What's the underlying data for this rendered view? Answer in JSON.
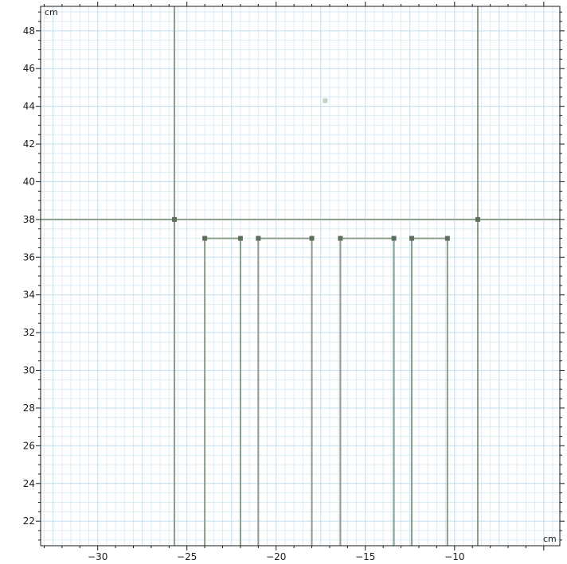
{
  "chart_data": {
    "type": "scatter",
    "x_unit": "cm",
    "y_unit": "cm",
    "xlim": [
      -33.2,
      -4.1
    ],
    "ylim": [
      20.7,
      49.3
    ],
    "x_ticks": [
      -30,
      -25,
      -20,
      -15,
      -10
    ],
    "y_ticks": [
      22,
      24,
      26,
      28,
      30,
      32,
      34,
      36,
      38,
      40,
      42,
      44,
      46,
      48
    ],
    "grid": true,
    "colors": {
      "grid_minor": "#dcecf5",
      "grid_major": "#c3deed",
      "geometry": "#8c9c8c",
      "vertex": "#5f6f5f",
      "faded_point": "#c5d0c5",
      "axis": "#1a1a1a"
    },
    "construction_lines": [
      {
        "orientation": "vertical",
        "x": -25.7
      },
      {
        "orientation": "vertical",
        "x": -8.7
      },
      {
        "orientation": "horizontal",
        "y": 38.0
      }
    ],
    "points": [
      {
        "x": -25.7,
        "y": 38.0
      },
      {
        "x": -8.7,
        "y": 38.0
      }
    ],
    "faded_points": [
      {
        "x": -17.25,
        "y": 44.3
      }
    ],
    "u_channels": [
      {
        "x_left": -24.0,
        "x_right": -22.0,
        "y_top": 37.0,
        "y_bottom": 20.7
      },
      {
        "x_left": -21.0,
        "x_right": -18.0,
        "y_top": 37.0,
        "y_bottom": 20.7
      },
      {
        "x_left": -16.4,
        "x_right": -13.4,
        "y_top": 37.0,
        "y_bottom": 20.7
      },
      {
        "x_left": -12.4,
        "x_right": -10.4,
        "y_top": 37.0,
        "y_bottom": 20.7
      }
    ]
  }
}
